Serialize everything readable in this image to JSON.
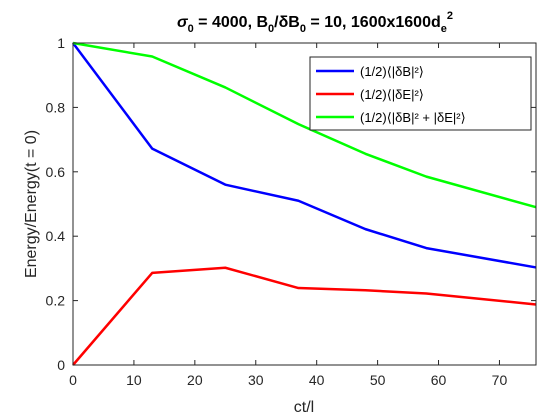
{
  "chart_data": {
    "type": "line",
    "title": "σ0 = 4000, B0/δB0 = 10, 1600x1600de²",
    "title_parts": {
      "sigma": "σ",
      "sigma_sub": "0",
      "sigma_eq": " = 4000, B",
      "b_sub": "0",
      "slash_delta": "/δB",
      "db_sub": "0",
      "mid": " = 10, 1600x1600d",
      "d_sub": "e",
      "d_sup": "2"
    },
    "xlabel": "ct/l",
    "ylabel": "Energy/Energy(t = 0)",
    "xlim": [
      0,
      76
    ],
    "ylim": [
      0,
      1
    ],
    "xticks": [
      0,
      10,
      20,
      30,
      40,
      50,
      60,
      70
    ],
    "yticks": [
      0,
      0.2,
      0.4,
      0.6,
      0.8,
      1
    ],
    "xtick_labels": [
      "0",
      "10",
      "20",
      "30",
      "40",
      "50",
      "60",
      "70"
    ],
    "ytick_labels": [
      "0",
      "0.2",
      "0.4",
      "0.6",
      "0.8",
      "1"
    ],
    "grid": false,
    "legend_position": "top-right",
    "series": [
      {
        "name": "(1/2)⟨|δB|²⟩",
        "color": "#0000ff",
        "x": [
          0,
          13,
          25,
          37,
          48,
          58,
          76
        ],
        "y": [
          1.0,
          0.672,
          0.56,
          0.51,
          0.422,
          0.363,
          0.303
        ]
      },
      {
        "name": "(1/2)⟨|δE|²⟩",
        "color": "#ff0000",
        "x": [
          0,
          13,
          25,
          37,
          48,
          58,
          76
        ],
        "y": [
          0.0,
          0.286,
          0.302,
          0.239,
          0.232,
          0.222,
          0.188
        ]
      },
      {
        "name": "(1/2)⟨|δB|² + |δE|²⟩",
        "color": "#00ff00",
        "x": [
          0,
          13,
          25,
          37,
          48,
          58,
          76
        ],
        "y": [
          1.0,
          0.958,
          0.862,
          0.748,
          0.656,
          0.585,
          0.49
        ]
      }
    ]
  }
}
